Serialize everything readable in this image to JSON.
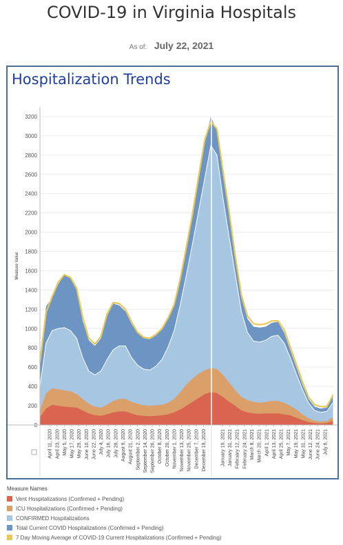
{
  "page": {
    "title": "COVID-19 in Virginia Hospitals",
    "asof_label": "As of:",
    "asof_date": "July 22, 2021",
    "panel_title": "Hospitalization Trends"
  },
  "chart_data": {
    "type": "area",
    "ylabel": "Measure Value",
    "xlabel": "",
    "ylim": [
      0,
      3300
    ],
    "yticks": [
      0,
      200,
      400,
      600,
      800,
      1000,
      1200,
      1400,
      1600,
      1800,
      2000,
      2200,
      2400,
      2600,
      2800,
      3000,
      3200
    ],
    "xrange": [
      "2020-03-26",
      "2021-07-22"
    ],
    "x_tick_labels": [
      "April 11, 2020",
      "April 23, 2020",
      "May 5, 2020",
      "May 17, 2020",
      "May 29, 2020",
      "June 10, 2020",
      "June 22, 2020",
      "July 4, 2020",
      "July 16, 2020",
      "July 28, 2020",
      "August 9, 2020",
      "August 21, 2020",
      "September 2, 2020",
      "September 14, 2020",
      "September 26, 2020",
      "October 8, 2020",
      "October 20, 2020",
      "November 1, 2020",
      "November 13, 2020",
      "November 25, 2020",
      "December 7, 2020",
      "December 19, 2020",
      "January 19, 2021",
      "January 31, 2021",
      "February 12, 2021",
      "February 24, 2021",
      "March 8, 2021",
      "March 20, 2021",
      "April 1, 2021",
      "April 13, 2021",
      "April 25, 2021",
      "May 7, 2021",
      "May 19, 2021",
      "May 31, 2021",
      "June 12, 2021",
      "June 24, 2021",
      "July 6, 2021"
    ],
    "x_tick_dates": [
      "2020-04-11",
      "2020-04-23",
      "2020-05-05",
      "2020-05-17",
      "2020-05-29",
      "2020-06-10",
      "2020-06-22",
      "2020-07-04",
      "2020-07-16",
      "2020-07-28",
      "2020-08-09",
      "2020-08-21",
      "2020-09-02",
      "2020-09-14",
      "2020-09-26",
      "2020-10-08",
      "2020-10-20",
      "2020-11-01",
      "2020-11-13",
      "2020-11-25",
      "2020-12-07",
      "2020-12-19",
      "2021-01-19",
      "2021-01-31",
      "2021-02-12",
      "2021-02-24",
      "2021-03-08",
      "2021-03-20",
      "2021-04-01",
      "2021-04-13",
      "2021-04-25",
      "2021-05-07",
      "2021-05-19",
      "2021-05-31",
      "2021-06-12",
      "2021-06-24",
      "2021-07-06"
    ],
    "divider_date": "2021-01-01",
    "legend_title": "Measure Names",
    "legend_position": "bottom",
    "x": [
      "2020-03-26",
      "2020-04-05",
      "2020-04-15",
      "2020-04-25",
      "2020-05-05",
      "2020-05-15",
      "2020-05-25",
      "2020-06-04",
      "2020-06-14",
      "2020-06-24",
      "2020-07-04",
      "2020-07-14",
      "2020-07-24",
      "2020-08-03",
      "2020-08-13",
      "2020-08-23",
      "2020-09-02",
      "2020-09-12",
      "2020-09-22",
      "2020-10-02",
      "2020-10-12",
      "2020-10-22",
      "2020-11-01",
      "2020-11-11",
      "2020-11-21",
      "2020-12-01",
      "2020-12-11",
      "2020-12-21",
      "2020-12-31",
      "2021-01-10",
      "2021-01-20",
      "2021-01-30",
      "2021-02-09",
      "2021-02-19",
      "2021-03-01",
      "2021-03-11",
      "2021-03-21",
      "2021-03-31",
      "2021-04-10",
      "2021-04-20",
      "2021-04-30",
      "2021-05-10",
      "2021-05-20",
      "2021-05-30",
      "2021-06-09",
      "2021-06-19",
      "2021-06-29",
      "2021-07-09",
      "2021-07-19"
    ],
    "series": [
      {
        "name": "Vent Hospitalizations (Confirmed + Pending)",
        "color": "#d9644f",
        "values": [
          80,
          170,
          210,
          200,
          190,
          185,
          180,
          150,
          120,
          100,
          95,
          110,
          130,
          140,
          140,
          120,
          100,
          95,
          90,
          95,
          100,
          110,
          130,
          160,
          200,
          240,
          280,
          320,
          340,
          330,
          290,
          240,
          200,
          150,
          130,
          120,
          115,
          120,
          120,
          120,
          110,
          100,
          75,
          50,
          30,
          20,
          15,
          20,
          40
        ]
      },
      {
        "name": "ICU Hospitalizations (Confirmed + Pending)",
        "color": "#dba06a",
        "values": [
          150,
          330,
          380,
          370,
          360,
          350,
          320,
          270,
          220,
          190,
          180,
          210,
          250,
          270,
          270,
          240,
          220,
          205,
          200,
          205,
          210,
          230,
          270,
          340,
          420,
          480,
          530,
          570,
          590,
          580,
          520,
          440,
          360,
          290,
          260,
          240,
          230,
          240,
          250,
          250,
          230,
          200,
          160,
          110,
          70,
          45,
          35,
          40,
          80
        ]
      },
      {
        "name": "CONFIRMED Hospitalizations",
        "color": "#a6c6e2",
        "values": [
          400,
          850,
          980,
          1000,
          1010,
          980,
          900,
          700,
          560,
          520,
          560,
          680,
          780,
          820,
          820,
          700,
          620,
          580,
          570,
          610,
          680,
          810,
          980,
          1250,
          1560,
          1880,
          2220,
          2560,
          2900,
          2800,
          2350,
          1950,
          1560,
          1180,
          960,
          870,
          860,
          880,
          920,
          930,
          850,
          700,
          530,
          370,
          230,
          150,
          130,
          140,
          230
        ]
      },
      {
        "name": "Total Current COVID Hospitalizations (Confirmed + Pending)",
        "color": "#6d95c3",
        "values": [
          650,
          1230,
          1320,
          1460,
          1560,
          1520,
          1400,
          1080,
          880,
          820,
          900,
          1130,
          1260,
          1240,
          1180,
          1050,
          950,
          900,
          890,
          930,
          990,
          1100,
          1240,
          1500,
          1830,
          2170,
          2550,
          2930,
          3200,
          3050,
          2600,
          2180,
          1720,
          1320,
          1100,
          1020,
          1010,
          1020,
          1060,
          1070,
          960,
          780,
          600,
          420,
          270,
          190,
          170,
          180,
          320
        ]
      },
      {
        "name": "7 Day Moving Average of COVID-19 Current Hospitalizations (Confirmed + Pending)",
        "color": "#e8c85a",
        "values": [
          650,
          1170,
          1330,
          1480,
          1560,
          1530,
          1420,
          1120,
          900,
          840,
          920,
          1150,
          1270,
          1260,
          1200,
          1070,
          960,
          910,
          900,
          940,
          1000,
          1110,
          1250,
          1520,
          1850,
          2190,
          2580,
          2960,
          3150,
          3070,
          2630,
          2210,
          1750,
          1350,
          1130,
          1050,
          1040,
          1050,
          1080,
          1080,
          990,
          810,
          630,
          450,
          290,
          210,
          190,
          190,
          310
        ]
      }
    ]
  }
}
